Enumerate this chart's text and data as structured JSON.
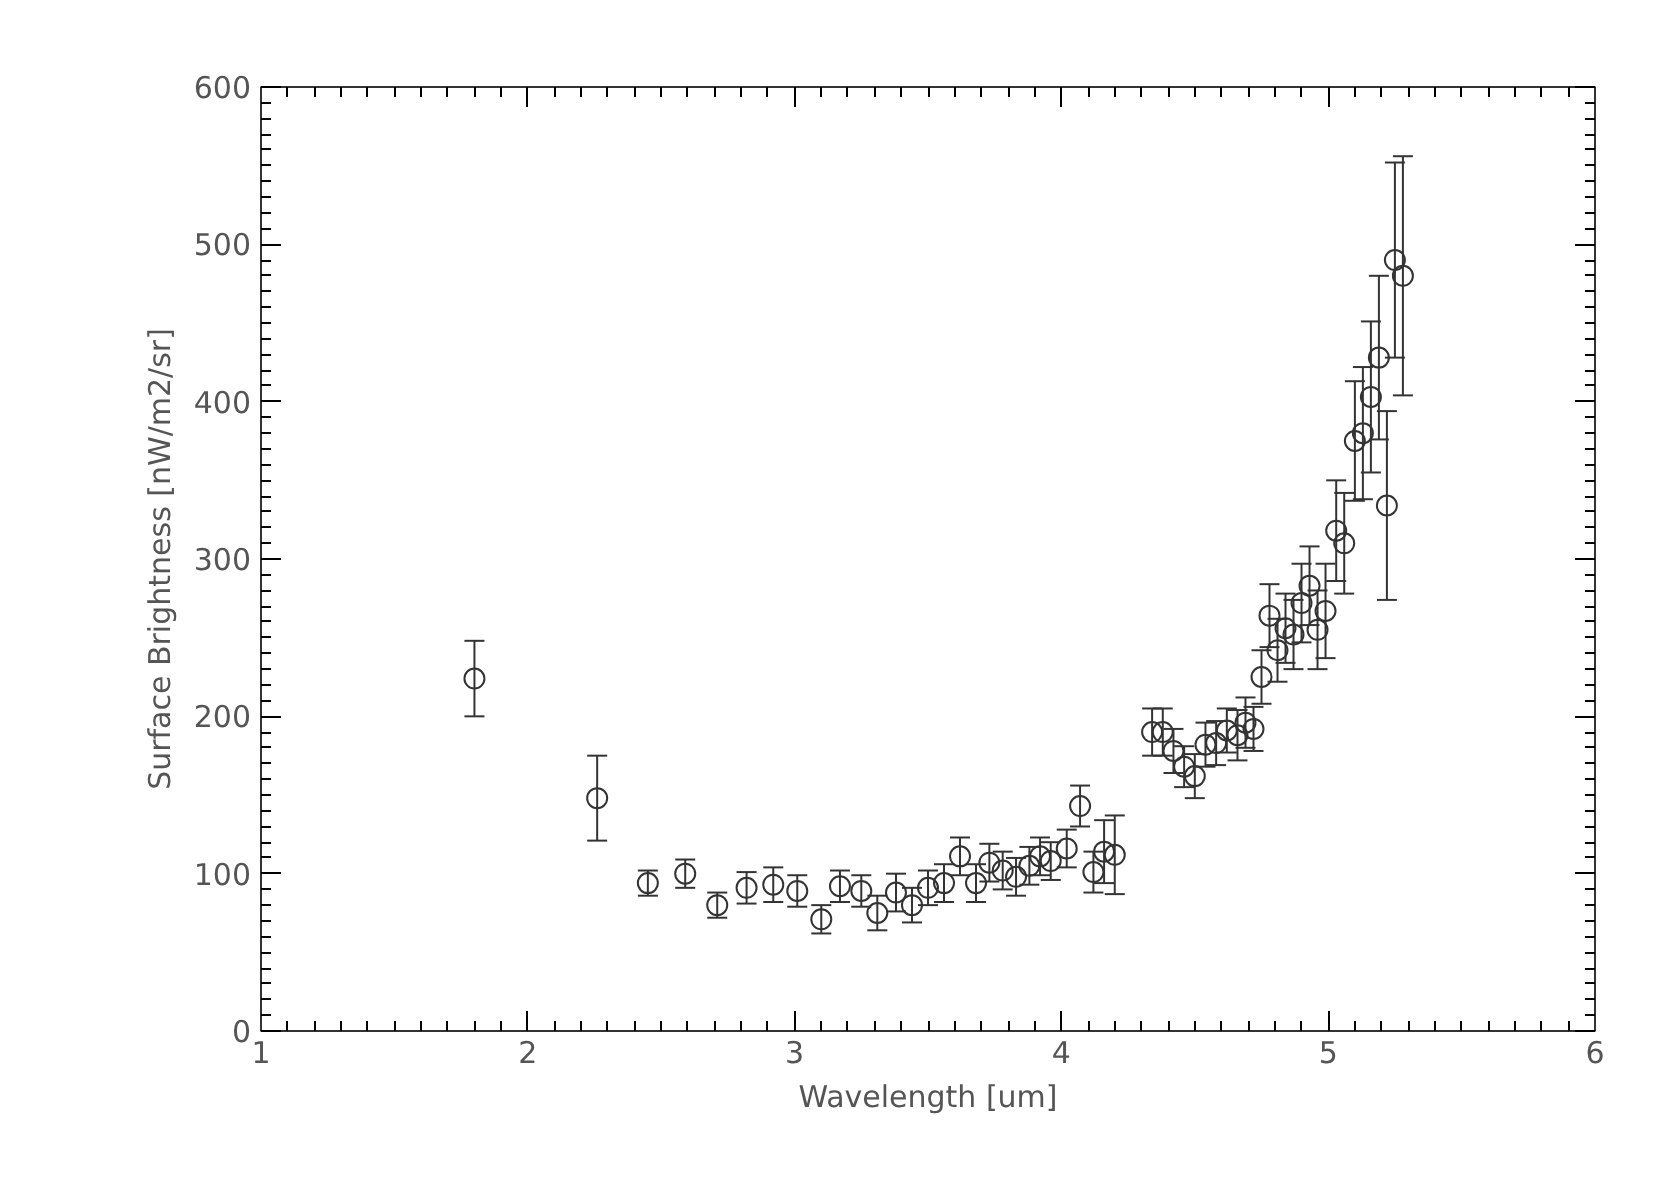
{
  "chart_data": {
    "type": "scatter",
    "xlabel": "Wavelength [um]",
    "ylabel": "Surface Brightness [nW/m2/sr]",
    "x": [
      1.8,
      2.26,
      2.45,
      2.59,
      2.71,
      2.82,
      2.92,
      3.01,
      3.1,
      3.17,
      3.25,
      3.31,
      3.38,
      3.44,
      3.5,
      3.56,
      3.62,
      3.68,
      3.73,
      3.78,
      3.83,
      3.88,
      3.92,
      3.96,
      4.02,
      4.07,
      4.12,
      4.16,
      4.2,
      4.34,
      4.38,
      4.42,
      4.46,
      4.5,
      4.54,
      4.58,
      4.62,
      4.66,
      4.69,
      4.72,
      4.75,
      4.78,
      4.81,
      4.84,
      4.87,
      4.9,
      4.93,
      4.96,
      4.99,
      5.03,
      5.06,
      5.1,
      5.13,
      5.16,
      5.19,
      5.22,
      5.25,
      5.28
    ],
    "series": [
      {
        "color": "#333333",
        "values": [
          224,
          148,
          94,
          100,
          80,
          91,
          93,
          89,
          71,
          92,
          89,
          75,
          88,
          80,
          91,
          94,
          111,
          94,
          107,
          102,
          98,
          105,
          111,
          108,
          116,
          143,
          101,
          114,
          112,
          190,
          190,
          178,
          168,
          162,
          182,
          183,
          191,
          188,
          196,
          192,
          225,
          264,
          242,
          256,
          252,
          272,
          283,
          255,
          267,
          318,
          310,
          375,
          380,
          403,
          428,
          334,
          490,
          480
        ],
        "errors": [
          24,
          27,
          8,
          9,
          8,
          10,
          11,
          10,
          9,
          10,
          10,
          11,
          12,
          11,
          11,
          12,
          12,
          12,
          12,
          12,
          12,
          12,
          12,
          12,
          12,
          13,
          13,
          20,
          25,
          15,
          15,
          14,
          13,
          14,
          14,
          14,
          14,
          16,
          16,
          14,
          17,
          20,
          20,
          22,
          22,
          25,
          25,
          25,
          30,
          32,
          32,
          38,
          42,
          48,
          52,
          60,
          62,
          76
        ]
      }
    ],
    "marker": "circle",
    "grid": false,
    "xlim": [
      1,
      6
    ],
    "xticks": [
      1,
      2,
      3,
      4,
      5,
      6
    ],
    "ylim": [
      0,
      600
    ],
    "yticks": [
      0,
      100,
      200,
      300,
      400,
      500,
      600
    ]
  }
}
